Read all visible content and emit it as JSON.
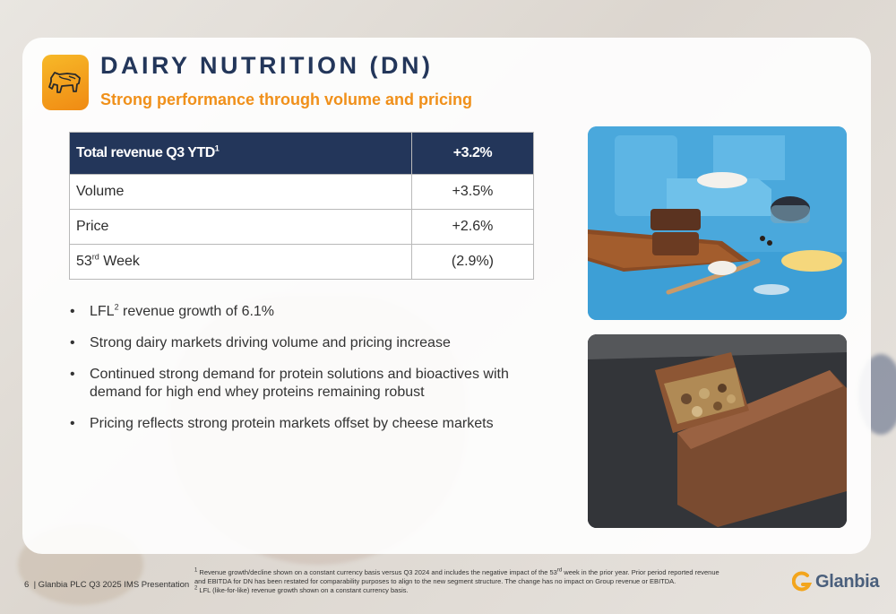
{
  "header": {
    "title": "DAIRY NUTRITION (DN)",
    "subtitle": "Strong performance through volume and pricing",
    "logo_icon": "cow-icon"
  },
  "table": {
    "header": {
      "label": "Total revenue Q3 YTD",
      "sup": "1",
      "value": "+3.2%"
    },
    "rows": [
      {
        "label": "Volume",
        "sup": "",
        "suffix": "",
        "value": "+3.5%"
      },
      {
        "label": "Price",
        "sup": "",
        "suffix": "",
        "value": "+2.6%"
      },
      {
        "label": "53",
        "sup": "rd",
        "suffix": " Week",
        "value": "(2.9%)"
      }
    ]
  },
  "bullets": [
    {
      "pre": "LFL",
      "sup": "2",
      "post": " revenue growth of 6.1%"
    },
    {
      "pre": "Strong dairy markets driving volume and pricing increase",
      "sup": "",
      "post": ""
    },
    {
      "pre": "Continued strong demand for protein solutions and bioactives with demand for high end whey proteins remaining robust",
      "sup": "",
      "post": ""
    },
    {
      "pre": "Pricing reflects strong protein markets offset by cheese markets",
      "sup": "",
      "post": ""
    }
  ],
  "footer": {
    "page_number": "6",
    "presentation": "| Glanbia PLC Q3 2025 IMS Presentation",
    "footnote1_sup": "1",
    "footnote1_a": " Revenue growth/decline shown on a constant currency basis versus Q3 2024 and includes the negative impact of the 53",
    "footnote1_sup2": "rd",
    "footnote1_b": " week in the prior year. Prior period reported revenue and EBITDA for DN has been restated for comparability purposes to align to the new segment structure. The change has no impact on Group revenue or EBITDA.",
    "footnote2_sup": "2",
    "footnote2": " LFL (like-for-like) revenue growth shown on a constant currency basis."
  },
  "brand": {
    "name": "Glanbia",
    "icon": "glanbia-logo-icon"
  },
  "colors": {
    "navy": "#23365a",
    "orange": "#f0901a",
    "photo_blue": "#49a6d9"
  }
}
